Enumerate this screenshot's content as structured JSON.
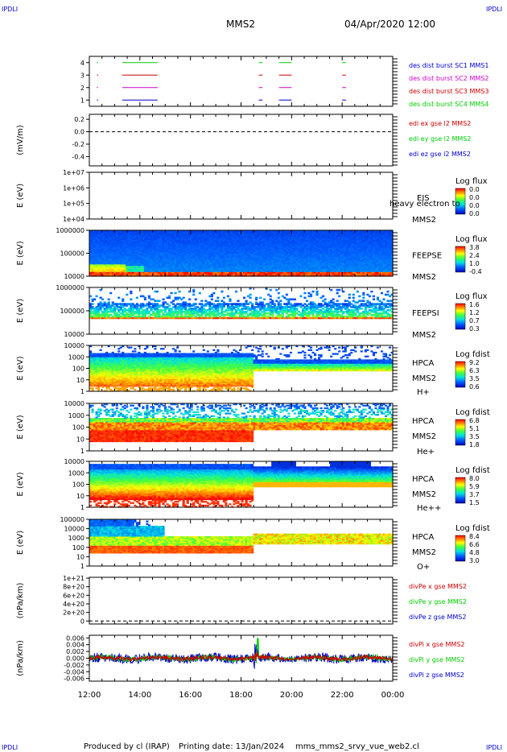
{
  "header": {
    "corner_tl": "IPDLI",
    "corner_tr": "IPDLI",
    "corner_bl": "IPDLI",
    "corner_br": "IPDLI",
    "spacecraft": "MMS2",
    "date": "04/Apr/2020 12:00"
  },
  "footer": {
    "produced_by": "Produced by cl (IRAP)",
    "printing_date": "Printing date: 13/Jan/2024",
    "filename": "mms_mms2_srvy_vue_web2.cl"
  },
  "x_axis": {
    "ticks": [
      "12:00",
      "14:00",
      "16:00",
      "18:00",
      "20:00",
      "22:00",
      "00:00"
    ],
    "tick_hours": [
      0,
      2,
      4,
      6,
      8,
      10,
      12
    ]
  },
  "colors": {
    "mms1": "#0000cc",
    "mms2": "#cc00cc",
    "mms3": "#cc0000",
    "mms4": "#00cc00",
    "x": "#cc0000",
    "y": "#00cc00",
    "z": "#0000cc"
  },
  "chart_data": [
    {
      "id": "burst",
      "type": "line",
      "yticks": [
        "4",
        "3",
        "2",
        "1"
      ],
      "ylim": [
        0.5,
        4.5
      ],
      "series": [
        {
          "name": "des dist burst SC1 MMS1",
          "level": 1,
          "color": "#0000cc",
          "intervals": [
            [
              0.3,
              0.35
            ],
            [
              1.3,
              2.7
            ],
            [
              6.7,
              6.85
            ],
            [
              7.5,
              8.0
            ],
            [
              10.0,
              10.15
            ]
          ]
        },
        {
          "name": "des dist burst SC2 MMS2",
          "level": 2,
          "color": "#cc00cc",
          "intervals": [
            [
              0.3,
              0.35
            ],
            [
              1.3,
              2.7
            ],
            [
              6.7,
              6.85
            ],
            [
              7.5,
              8.0
            ],
            [
              10.0,
              10.15
            ]
          ]
        },
        {
          "name": "des dist burst SC3 MMS3",
          "level": 3,
          "color": "#cc0000",
          "intervals": [
            [
              0.3,
              0.35
            ],
            [
              1.3,
              2.7
            ],
            [
              6.7,
              6.85
            ],
            [
              7.5,
              8.0
            ],
            [
              10.0,
              10.15
            ]
          ]
        },
        {
          "name": "des dist burst SC4 MMS4",
          "level": 4,
          "color": "#00cc00",
          "intervals": [
            [
              0.3,
              0.35
            ],
            [
              1.3,
              2.7
            ],
            [
              6.7,
              6.85
            ],
            [
              7.5,
              8.0
            ],
            [
              10.0,
              10.15
            ]
          ]
        }
      ]
    },
    {
      "id": "efield",
      "type": "line",
      "ylabel": "(mV/m)",
      "yticks": [
        "0.2",
        "0.0",
        "-0.2",
        "-0.4"
      ],
      "ylim": [
        -0.55,
        0.28
      ],
      "zero_line": true,
      "series": [
        {
          "name": "edi ex gse l2 MMS2",
          "color": "#cc0000"
        },
        {
          "name": "edi ey gse l2 MMS2",
          "color": "#00cc00"
        },
        {
          "name": "edi ez gse l2 MMS2",
          "color": "#0000cc"
        }
      ]
    },
    {
      "id": "eis",
      "type": "heatmap",
      "ylabel": "E (eV)",
      "yticks": [
        "1e+07",
        "1e+06",
        "1e+05",
        "1e+04"
      ],
      "instrument": "EIS",
      "spacecraft": "MMS2",
      "overlay_text": "heavy electron to",
      "colorbar_title": "Log flux",
      "colorbar_ticks": [
        "0.0",
        "0.0",
        "0.0",
        "0.0"
      ]
    },
    {
      "id": "feepse",
      "type": "heatmap",
      "ylabel": "E (eV)",
      "yticks": [
        "1000000",
        "100000",
        "10000"
      ],
      "instrument": "FEEPSE",
      "spacecraft": "MMS2",
      "colorbar_title": "Log flux",
      "colorbar_ticks": [
        "3.8",
        "2.4",
        "1.0",
        "-0.4"
      ]
    },
    {
      "id": "feepsi",
      "type": "heatmap",
      "ylabel": "E (eV)",
      "yticks": [
        "1000000",
        "100000",
        "10000"
      ],
      "instrument": "FEEPSI",
      "spacecraft": "MMS2",
      "colorbar_title": "Log flux",
      "colorbar_ticks": [
        "1.6",
        "1.2",
        "0.7",
        "0.3"
      ]
    },
    {
      "id": "hpca_h",
      "type": "heatmap",
      "ylabel": "E (eV)",
      "yticks": [
        "10000",
        "1000",
        "100",
        "10",
        "1"
      ],
      "instrument": "HPCA",
      "spacecraft": "MMS2",
      "species": "H+",
      "colorbar_title": "Log fdist",
      "colorbar_ticks": [
        "9.2",
        "6.3",
        "3.5",
        "0.6"
      ]
    },
    {
      "id": "hpca_he",
      "type": "heatmap",
      "ylabel": "E (eV)",
      "yticks": [
        "10000",
        "1000",
        "100",
        "10",
        "1"
      ],
      "instrument": "HPCA",
      "spacecraft": "MMS2",
      "species": "He+",
      "colorbar_title": "Log fdist",
      "colorbar_ticks": [
        "6.8",
        "5.1",
        "3.5",
        "1.8"
      ]
    },
    {
      "id": "hpca_hepp",
      "type": "heatmap",
      "ylabel": "E (eV)",
      "yticks": [
        "10000",
        "1000",
        "100",
        "10",
        "1"
      ],
      "instrument": "HPCA",
      "spacecraft": "MMS2",
      "species": "He++",
      "colorbar_title": "Log fdist",
      "colorbar_ticks": [
        "8.0",
        "5.9",
        "3.7",
        "1.5"
      ]
    },
    {
      "id": "hpca_o",
      "type": "heatmap",
      "ylabel": "E (eV)",
      "yticks": [
        "100000",
        "10000",
        "1000",
        "100",
        "10",
        "1"
      ],
      "instrument": "HPCA",
      "spacecraft": "MMS2",
      "species": "O+",
      "colorbar_title": "Log fdist",
      "colorbar_ticks": [
        "8.4",
        "6.6",
        "4.8",
        "3.0"
      ]
    },
    {
      "id": "divpe",
      "type": "line",
      "ylabel": "(nPa/km)",
      "yticks": [
        "1e+21",
        "8e+20",
        "6e+20",
        "4e+20",
        "2e+20",
        "0"
      ],
      "ylim": [
        -7e+19,
        1.02e+21
      ],
      "zero_line": true,
      "series": [
        {
          "name": "divPe x gse MMS2",
          "color": "#cc0000"
        },
        {
          "name": "divPe y gse MMS2",
          "color": "#00cc00"
        },
        {
          "name": "divPe z gse MMS2",
          "color": "#0000cc"
        }
      ]
    },
    {
      "id": "divpi",
      "type": "line",
      "ylabel": "(nPa/km)",
      "yticks": [
        "0.006",
        "0.004",
        "0.002",
        "0.000",
        "-0.002",
        "-0.004",
        "-0.006"
      ],
      "ylim": [
        -0.0068,
        0.0068
      ],
      "series": [
        {
          "name": "divPi x gse MMS2",
          "color": "#cc0000"
        },
        {
          "name": "divPi y gse MMS2",
          "color": "#00cc00"
        },
        {
          "name": "divPi z gse MMS2",
          "color": "#0000cc"
        }
      ]
    }
  ]
}
